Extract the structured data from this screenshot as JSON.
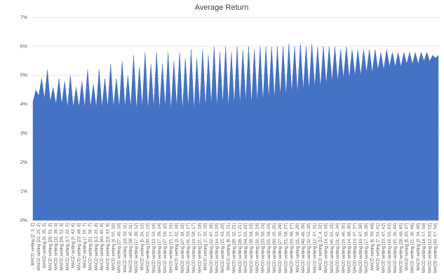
{
  "chart_data": {
    "type": "area",
    "title": "Average Return",
    "categories": [
      "MACD setting [2, 3, 2]",
      null,
      "MACD setting [22, 25, 2]",
      null,
      "MACD setting [6, 35, 3]",
      null,
      "MACD setting [29, 31, 3]",
      null,
      "MACD setting [11, 36, 4]",
      null,
      "MACD setting [39, 52, 4]",
      null,
      "MACD setting [17, 22, 5]",
      null,
      "MACD setting [5, 42, 6]",
      null,
      "MACD setting [23, 48, 6]",
      null,
      "MACD setting [7, 55, 7]",
      null,
      "MACD setting [31, 56, 7]",
      null,
      "MACD setting [13, 23, 8]",
      null,
      "MACD setting [40, 45, 8]",
      null,
      "MACD setting [19, 43, 9]",
      null,
      "MACD setting [4, 55, 10]",
      null,
      "MACD setting [27, 40, 10]",
      null,
      "MACD setting [10, 53, 11]",
      null,
      "MACD setting [38, 45, 11]",
      null,
      "MACD setting [17, 39, 12]",
      null,
      "MACD setting [5, 24, 13]",
      null,
      "MACD setting [30, 55, 13]",
      null,
      "MACD setting [10, 53, 14]",
      null,
      "MACD setting [17, 39, 14]",
      null,
      "MACD setting [37, 59, 15]",
      null,
      "MACD setting [15, 17, 15]",
      null,
      "MACD setting [3, 42, 16]",
      null,
      "MACD setting [27, 34, 16]",
      null,
      "MACD setting [41, 50, 17]",
      null,
      "MACD setting [14, 58, 17]",
      null,
      "MACD setting [21, 27, 18]",
      null,
      "MACD setting [7, 33, 19]",
      null,
      "MACD setting [22, 47, 19]",
      null,
      "MACD setting [14, 53, 20]",
      null,
      "MACD setting [15, 43, 20]",
      null,
      "MACD setting [9, 20, 21]",
      null,
      "MACD setting [29, 42, 21]",
      null,
      "MACD setting [28, 57, 21]",
      null,
      "MACD setting [54, 55, 22]",
      null,
      "MACD setting [38, 58, 23]",
      null,
      "MACD setting [16, 38, 24]",
      null,
      "MACD setting [20, 58, 24]",
      null,
      "MACD setting [55, 58, 24]",
      null,
      "MACD setting [60, 25, 25]",
      null,
      "MACD setting [27, 30, 26]",
      null,
      "MACD setting [51, 58, 27]",
      null,
      "MACD setting [24, 48, 27]",
      null,
      "MACD setting [11, 38, 29]",
      null,
      "MACD setting [40, 46, 29]",
      null,
      "MACD setting [32, 52, 30]",
      null,
      "MACD setting [12, 47, 31]",
      null,
      "MACD setting [12, 4, 32]",
      null,
      "MACD setting [14, 43, 33]",
      null,
      "MACD setting [45, 55, 33]",
      null,
      "MACD setting [21, 42, 34]",
      null,
      "MACD setting [19, 46, 35]",
      null,
      "MACD setting [14, 48, 36]",
      null,
      "MACD setting [14, 37, 37]",
      null,
      "MACD setting [10, 47, 38]",
      null,
      "MACD setting [17, 56, 39]",
      null,
      "MACD setting [6, 56, 40]",
      null,
      "MACD setting [7, 54, 41]",
      null,
      "MACD setting [10, 47, 42]",
      null,
      "MACD setting [16, 55, 43]",
      null,
      "MACD setting [15, 36, 44]",
      null,
      "MACD setting [28, 46, 45]",
      null,
      "MACD setting [6, 60, 47]",
      null,
      "MACD setting [31, 36, 48]",
      null,
      "MACD setting [3, 34, 48]",
      null,
      "MACD setting [14, 57, 50]",
      null,
      "MACD setting [12, 60, 52]",
      null,
      "MACD setting [43, 57, 54]",
      null
    ],
    "values": [
      4.1,
      4.5,
      4.3,
      4.9,
      4.2,
      5.2,
      4.1,
      4.6,
      4.0,
      4.9,
      4.0,
      4.8,
      3.9,
      5.0,
      3.9,
      4.6,
      3.9,
      4.8,
      3.9,
      5.2,
      3.9,
      4.7,
      3.9,
      5.2,
      3.9,
      4.9,
      3.9,
      5.4,
      3.9,
      4.9,
      3.9,
      5.5,
      3.9,
      5.0,
      3.9,
      5.7,
      3.8,
      5.3,
      3.9,
      5.8,
      3.8,
      5.4,
      3.9,
      5.8,
      3.8,
      5.4,
      3.9,
      5.8,
      3.8,
      5.5,
      3.9,
      5.8,
      3.8,
      5.6,
      3.9,
      5.9,
      3.8,
      5.6,
      3.9,
      5.9,
      3.9,
      5.7,
      4.0,
      6.0,
      3.9,
      5.8,
      4.0,
      6.0,
      3.9,
      5.8,
      4.0,
      6.0,
      4.0,
      5.9,
      4.1,
      6.0,
      4.0,
      5.9,
      4.1,
      6.0,
      4.1,
      6.0,
      4.2,
      6.0,
      4.2,
      6.0,
      4.3,
      6.0,
      4.3,
      6.1,
      4.4,
      6.0,
      4.4,
      6.1,
      4.5,
      6.0,
      4.5,
      6.1,
      4.6,
      6.0,
      4.6,
      6.0,
      4.7,
      6.0,
      4.8,
      6.0,
      4.8,
      5.9,
      4.9,
      6.0,
      4.9,
      5.9,
      5.0,
      5.9,
      5.0,
      5.9,
      5.1,
      5.9,
      5.1,
      5.9,
      5.2,
      5.8,
      5.2,
      5.9,
      5.3,
      5.8,
      5.3,
      5.8,
      5.3,
      5.8,
      5.4,
      5.8,
      5.4,
      5.8,
      5.4,
      5.8,
      5.5,
      5.8,
      5.5,
      5.7,
      5.6,
      5.7
    ],
    "color": "#4472c4",
    "ylim": [
      0,
      7
    ],
    "yticks": [
      {
        "value": 0,
        "label": "0%"
      },
      {
        "value": 1,
        "label": "1%"
      },
      {
        "value": 2,
        "label": "2%"
      },
      {
        "value": 3,
        "label": "3%"
      },
      {
        "value": 4,
        "label": "4%"
      },
      {
        "value": 5,
        "label": "5%"
      },
      {
        "value": 6,
        "label": "6%"
      },
      {
        "value": 7,
        "label": "7%"
      }
    ],
    "grid": true
  }
}
